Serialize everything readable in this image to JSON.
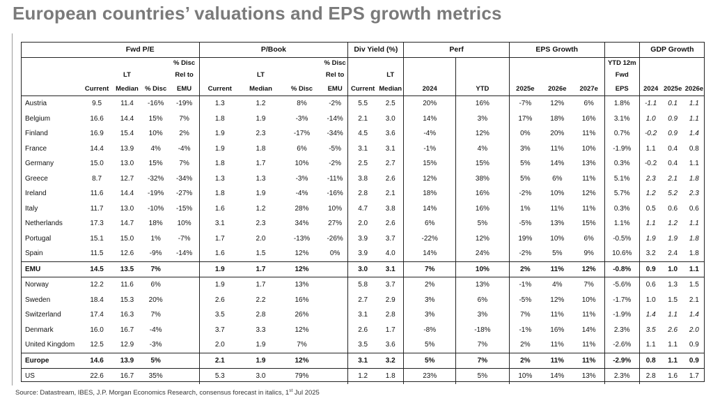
{
  "title": "European countries’ valuations and EPS growth metrics",
  "group_headers": {
    "fwd_pe": "Fwd P/E",
    "pbook": "P/Book",
    "div_yield": "Div Yield (%)",
    "perf": "Perf",
    "eps_growth": "EPS Growth",
    "gdp_growth": "GDP Growth"
  },
  "column_headers": {
    "pct_disc_rel_top": "% Disc",
    "ytd12m_top": "YTD 12m",
    "ytd12m_fwd": "Fwd",
    "lt_top": "LT",
    "rel_to": "Rel to",
    "current": "Current",
    "median": "Median",
    "pct_disc": "% Disc",
    "emu": "EMU",
    "y2024": "2024",
    "ytd": "YTD",
    "y2025e": "2025e",
    "y2026e": "2026e",
    "y2027e": "2027e",
    "eps": "EPS"
  },
  "rows": [
    {
      "country": "Austria",
      "pe_cur": "9.5",
      "pe_lt": "11.4",
      "pe_disc": "-16%",
      "pe_rel": "-19%",
      "pb_cur": "1.3",
      "pb_lt": "1.2",
      "pb_disc": "8%",
      "pb_rel": "-2%",
      "dy_cur": "5.5",
      "dy_lt": "2.5",
      "perf_2024": "20%",
      "perf_ytd": "16%",
      "eps_25": "-7%",
      "eps_26": "12%",
      "eps_27": "6%",
      "ytd12m": "1.8%",
      "gdp_24": "-1.1",
      "gdp_25": "0.1",
      "gdp_26": "1.1",
      "gdp_italic": true,
      "agg": false
    },
    {
      "country": "Belgium",
      "pe_cur": "16.6",
      "pe_lt": "14.4",
      "pe_disc": "15%",
      "pe_rel": "7%",
      "pb_cur": "1.8",
      "pb_lt": "1.9",
      "pb_disc": "-3%",
      "pb_rel": "-14%",
      "dy_cur": "2.1",
      "dy_lt": "3.0",
      "perf_2024": "14%",
      "perf_ytd": "3%",
      "eps_25": "17%",
      "eps_26": "18%",
      "eps_27": "16%",
      "ytd12m": "3.1%",
      "gdp_24": "1.0",
      "gdp_25": "0.9",
      "gdp_26": "1.1",
      "gdp_italic": true,
      "agg": false
    },
    {
      "country": "Finland",
      "pe_cur": "16.9",
      "pe_lt": "15.4",
      "pe_disc": "10%",
      "pe_rel": "2%",
      "pb_cur": "1.9",
      "pb_lt": "2.3",
      "pb_disc": "-17%",
      "pb_rel": "-34%",
      "dy_cur": "4.5",
      "dy_lt": "3.6",
      "perf_2024": "-4%",
      "perf_ytd": "12%",
      "eps_25": "0%",
      "eps_26": "20%",
      "eps_27": "11%",
      "ytd12m": "0.7%",
      "gdp_24": "-0.2",
      "gdp_25": "0.9",
      "gdp_26": "1.4",
      "gdp_italic": true,
      "agg": false
    },
    {
      "country": "France",
      "pe_cur": "14.4",
      "pe_lt": "13.9",
      "pe_disc": "4%",
      "pe_rel": "-4%",
      "pb_cur": "1.9",
      "pb_lt": "1.8",
      "pb_disc": "6%",
      "pb_rel": "-5%",
      "dy_cur": "3.1",
      "dy_lt": "3.1",
      "perf_2024": "-1%",
      "perf_ytd": "4%",
      "eps_25": "3%",
      "eps_26": "11%",
      "eps_27": "10%",
      "ytd12m": "-1.9%",
      "gdp_24": "1.1",
      "gdp_25": "0.4",
      "gdp_26": "0.8",
      "gdp_italic": false,
      "agg": false
    },
    {
      "country": "Germany",
      "pe_cur": "15.0",
      "pe_lt": "13.0",
      "pe_disc": "15%",
      "pe_rel": "7%",
      "pb_cur": "1.8",
      "pb_lt": "1.7",
      "pb_disc": "10%",
      "pb_rel": "-2%",
      "dy_cur": "2.5",
      "dy_lt": "2.7",
      "perf_2024": "15%",
      "perf_ytd": "15%",
      "eps_25": "5%",
      "eps_26": "14%",
      "eps_27": "13%",
      "ytd12m": "0.3%",
      "gdp_24": "-0.2",
      "gdp_25": "0.4",
      "gdp_26": "1.1",
      "gdp_italic": false,
      "agg": false
    },
    {
      "country": "Greece",
      "pe_cur": "8.7",
      "pe_lt": "12.7",
      "pe_disc": "-32%",
      "pe_rel": "-34%",
      "pb_cur": "1.3",
      "pb_lt": "1.3",
      "pb_disc": "-3%",
      "pb_rel": "-11%",
      "dy_cur": "3.8",
      "dy_lt": "2.6",
      "perf_2024": "12%",
      "perf_ytd": "38%",
      "eps_25": "5%",
      "eps_26": "6%",
      "eps_27": "11%",
      "ytd12m": "5.1%",
      "gdp_24": "2.3",
      "gdp_25": "2.1",
      "gdp_26": "1.8",
      "gdp_italic": true,
      "agg": false
    },
    {
      "country": "Ireland",
      "pe_cur": "11.6",
      "pe_lt": "14.4",
      "pe_disc": "-19%",
      "pe_rel": "-27%",
      "pb_cur": "1.8",
      "pb_lt": "1.9",
      "pb_disc": "-4%",
      "pb_rel": "-16%",
      "dy_cur": "2.8",
      "dy_lt": "2.1",
      "perf_2024": "18%",
      "perf_ytd": "16%",
      "eps_25": "-2%",
      "eps_26": "10%",
      "eps_27": "12%",
      "ytd12m": "5.7%",
      "gdp_24": "1.2",
      "gdp_25": "5.2",
      "gdp_26": "2.3",
      "gdp_italic": true,
      "agg": false
    },
    {
      "country": "Italy",
      "pe_cur": "11.7",
      "pe_lt": "13.0",
      "pe_disc": "-10%",
      "pe_rel": "-15%",
      "pb_cur": "1.6",
      "pb_lt": "1.2",
      "pb_disc": "28%",
      "pb_rel": "10%",
      "dy_cur": "4.7",
      "dy_lt": "3.8",
      "perf_2024": "14%",
      "perf_ytd": "16%",
      "eps_25": "1%",
      "eps_26": "11%",
      "eps_27": "11%",
      "ytd12m": "0.3%",
      "gdp_24": "0.5",
      "gdp_25": "0.6",
      "gdp_26": "0.6",
      "gdp_italic": false,
      "agg": false
    },
    {
      "country": "Netherlands",
      "pe_cur": "17.3",
      "pe_lt": "14.7",
      "pe_disc": "18%",
      "pe_rel": "10%",
      "pb_cur": "3.1",
      "pb_lt": "2.3",
      "pb_disc": "34%",
      "pb_rel": "27%",
      "dy_cur": "2.0",
      "dy_lt": "2.6",
      "perf_2024": "6%",
      "perf_ytd": "5%",
      "eps_25": "-5%",
      "eps_26": "13%",
      "eps_27": "15%",
      "ytd12m": "1.1%",
      "gdp_24": "1.1",
      "gdp_25": "1.2",
      "gdp_26": "1.1",
      "gdp_italic": true,
      "agg": false
    },
    {
      "country": "Portugal",
      "pe_cur": "15.1",
      "pe_lt": "15.0",
      "pe_disc": "1%",
      "pe_rel": "-7%",
      "pb_cur": "1.7",
      "pb_lt": "2.0",
      "pb_disc": "-13%",
      "pb_rel": "-26%",
      "dy_cur": "3.9",
      "dy_lt": "3.7",
      "perf_2024": "-22%",
      "perf_ytd": "12%",
      "eps_25": "19%",
      "eps_26": "10%",
      "eps_27": "6%",
      "ytd12m": "-0.5%",
      "gdp_24": "1.9",
      "gdp_25": "1.9",
      "gdp_26": "1.8",
      "gdp_italic": true,
      "agg": false
    },
    {
      "country": "Spain",
      "pe_cur": "11.5",
      "pe_lt": "12.6",
      "pe_disc": "-9%",
      "pe_rel": "-14%",
      "pb_cur": "1.6",
      "pb_lt": "1.5",
      "pb_disc": "12%",
      "pb_rel": "0%",
      "dy_cur": "3.9",
      "dy_lt": "4.0",
      "perf_2024": "14%",
      "perf_ytd": "24%",
      "eps_25": "-2%",
      "eps_26": "5%",
      "eps_27": "9%",
      "ytd12m": "10.6%",
      "gdp_24": "3.2",
      "gdp_25": "2.4",
      "gdp_26": "1.8",
      "gdp_italic": false,
      "agg": false
    },
    {
      "country": "EMU",
      "pe_cur": "14.5",
      "pe_lt": "13.5",
      "pe_disc": "7%",
      "pe_rel": "",
      "pb_cur": "1.9",
      "pb_lt": "1.7",
      "pb_disc": "12%",
      "pb_rel": "",
      "dy_cur": "3.0",
      "dy_lt": "3.1",
      "perf_2024": "7%",
      "perf_ytd": "10%",
      "eps_25": "2%",
      "eps_26": "11%",
      "eps_27": "12%",
      "ytd12m": "-0.8%",
      "gdp_24": "0.9",
      "gdp_25": "1.0",
      "gdp_26": "1.1",
      "gdp_italic": false,
      "agg": true
    },
    {
      "country": "Norway",
      "pe_cur": "12.2",
      "pe_lt": "11.6",
      "pe_disc": "6%",
      "pe_rel": "",
      "pb_cur": "1.9",
      "pb_lt": "1.7",
      "pb_disc": "13%",
      "pb_rel": "",
      "dy_cur": "5.8",
      "dy_lt": "3.7",
      "perf_2024": "2%",
      "perf_ytd": "13%",
      "eps_25": "-1%",
      "eps_26": "4%",
      "eps_27": "7%",
      "ytd12m": "-5.6%",
      "gdp_24": "0.6",
      "gdp_25": "1.3",
      "gdp_26": "1.5",
      "gdp_italic": false,
      "agg": false
    },
    {
      "country": "Sweden",
      "pe_cur": "18.4",
      "pe_lt": "15.3",
      "pe_disc": "20%",
      "pe_rel": "",
      "pb_cur": "2.6",
      "pb_lt": "2.2",
      "pb_disc": "16%",
      "pb_rel": "",
      "dy_cur": "2.7",
      "dy_lt": "2.9",
      "perf_2024": "3%",
      "perf_ytd": "6%",
      "eps_25": "-5%",
      "eps_26": "12%",
      "eps_27": "10%",
      "ytd12m": "-1.7%",
      "gdp_24": "1.0",
      "gdp_25": "1.5",
      "gdp_26": "2.1",
      "gdp_italic": false,
      "agg": false
    },
    {
      "country": "Switzerland",
      "pe_cur": "17.4",
      "pe_lt": "16.3",
      "pe_disc": "7%",
      "pe_rel": "",
      "pb_cur": "3.5",
      "pb_lt": "2.8",
      "pb_disc": "26%",
      "pb_rel": "",
      "dy_cur": "3.1",
      "dy_lt": "2.8",
      "perf_2024": "3%",
      "perf_ytd": "3%",
      "eps_25": "7%",
      "eps_26": "11%",
      "eps_27": "11%",
      "ytd12m": "-1.9%",
      "gdp_24": "1.4",
      "gdp_25": "1.1",
      "gdp_26": "1.4",
      "gdp_italic": true,
      "agg": false
    },
    {
      "country": "Denmark",
      "pe_cur": "16.0",
      "pe_lt": "16.7",
      "pe_disc": "-4%",
      "pe_rel": "",
      "pb_cur": "3.7",
      "pb_lt": "3.3",
      "pb_disc": "12%",
      "pb_rel": "",
      "dy_cur": "2.6",
      "dy_lt": "1.7",
      "perf_2024": "-8%",
      "perf_ytd": "-18%",
      "eps_25": "-1%",
      "eps_26": "16%",
      "eps_27": "14%",
      "ytd12m": "2.3%",
      "gdp_24": "3.5",
      "gdp_25": "2.6",
      "gdp_26": "2.0",
      "gdp_italic": true,
      "agg": false
    },
    {
      "country": "United Kingdom",
      "pe_cur": "12.5",
      "pe_lt": "12.9",
      "pe_disc": "-3%",
      "pe_rel": "",
      "pb_cur": "2.0",
      "pb_lt": "1.9",
      "pb_disc": "7%",
      "pb_rel": "",
      "dy_cur": "3.5",
      "dy_lt": "3.6",
      "perf_2024": "5%",
      "perf_ytd": "7%",
      "eps_25": "2%",
      "eps_26": "11%",
      "eps_27": "11%",
      "ytd12m": "-2.6%",
      "gdp_24": "1.1",
      "gdp_25": "1.1",
      "gdp_26": "0.9",
      "gdp_italic": false,
      "agg": false
    },
    {
      "country": "Europe",
      "pe_cur": "14.6",
      "pe_lt": "13.9",
      "pe_disc": "5%",
      "pe_rel": "",
      "pb_cur": "2.1",
      "pb_lt": "1.9",
      "pb_disc": "12%",
      "pb_rel": "",
      "dy_cur": "3.1",
      "dy_lt": "3.2",
      "perf_2024": "5%",
      "perf_ytd": "7%",
      "eps_25": "2%",
      "eps_26": "11%",
      "eps_27": "11%",
      "ytd12m": "-2.9%",
      "gdp_24": "0.8",
      "gdp_25": "1.1",
      "gdp_26": "0.9",
      "gdp_italic": false,
      "agg": true
    },
    {
      "country": "US",
      "pe_cur": "22.6",
      "pe_lt": "16.7",
      "pe_disc": "35%",
      "pe_rel": "",
      "pb_cur": "5.3",
      "pb_lt": "3.0",
      "pb_disc": "79%",
      "pb_rel": "",
      "dy_cur": "1.2",
      "dy_lt": "1.8",
      "perf_2024": "23%",
      "perf_ytd": "5%",
      "eps_25": "10%",
      "eps_26": "14%",
      "eps_27": "13%",
      "ytd12m": "2.3%",
      "gdp_24": "2.8",
      "gdp_25": "1.6",
      "gdp_26": "1.7",
      "gdp_italic": false,
      "agg": false
    }
  ],
  "source": {
    "text_before": "Source: Datastream, IBES, J.P. Morgan Economics Research, consensus forecast in italics, 1",
    "superscript": "st",
    "text_after": " Jul 2025"
  }
}
